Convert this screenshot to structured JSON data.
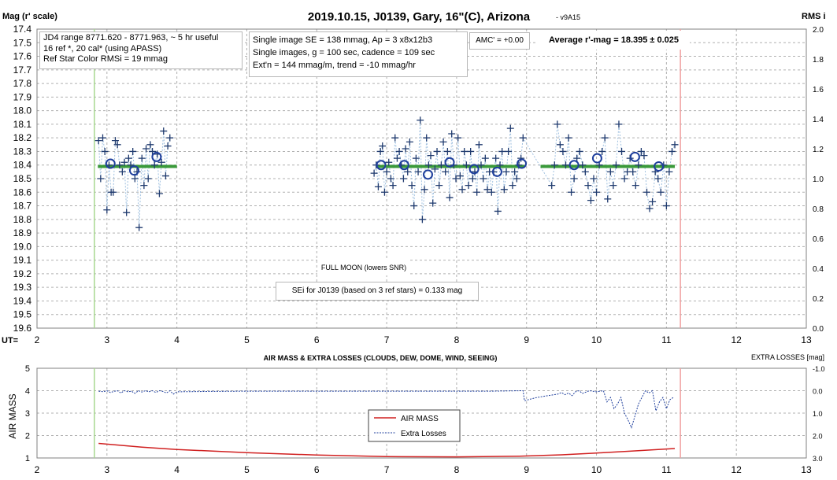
{
  "chart_data": [
    {
      "type": "scatter",
      "title": "2019.10.15, J0139, Gary, 16\"(C), Arizona",
      "version": "- v9A15",
      "ylabel_left": "Mag (r' scale)",
      "ylabel_right": "RMS i",
      "xlabel": "UT=",
      "xlim": [
        2,
        13
      ],
      "ylim_left": [
        17.4,
        19.6
      ],
      "ylim_right": [
        0.0,
        2.0
      ],
      "y_inverted": true,
      "grid": true,
      "x_ticks": [
        "2",
        "3",
        "4",
        "5",
        "6",
        "7",
        "8",
        "9",
        "10",
        "11",
        "12",
        "13"
      ],
      "y_ticks_left": [
        "17.4",
        "17.5",
        "17.6",
        "17.7",
        "17.8",
        "17.9",
        "18.0",
        "18.1",
        "18.2",
        "18.3",
        "18.4",
        "18.5",
        "18.6",
        "18.7",
        "18.8",
        "18.9",
        "19.0",
        "19.1",
        "19.2",
        "19.3",
        "19.4",
        "19.5",
        "19.6"
      ],
      "y_ticks_right": [
        "0.0",
        "0.2",
        "0.4",
        "0.6",
        "0.8",
        "1.0",
        "1.2",
        "1.4",
        "1.6",
        "1.8",
        "2.0"
      ],
      "vertical_markers": [
        {
          "x": 2.82,
          "color": "#a8d890"
        },
        {
          "x": 11.2,
          "color": "#f0a0a0"
        }
      ],
      "series": [
        {
          "marker": "plus",
          "color": "#1f3a6e",
          "x": [
            2.88,
            2.91,
            2.94,
            2.97,
            3.0,
            3.03,
            3.06,
            3.09,
            3.12,
            3.15,
            3.18,
            3.22,
            3.25,
            3.28,
            3.31,
            3.34,
            3.37,
            3.4,
            3.43,
            3.46,
            3.5,
            3.53,
            3.56,
            3.59,
            3.62,
            3.65,
            3.68,
            3.72,
            3.75,
            3.78,
            3.81,
            3.84,
            3.87,
            3.9,
            6.82,
            6.85,
            6.88,
            6.91,
            6.94,
            6.97,
            7.0,
            7.03,
            7.06,
            7.09,
            7.12,
            7.15,
            7.18,
            7.21,
            7.24,
            7.27,
            7.3,
            7.33,
            7.36,
            7.39,
            7.42,
            7.45,
            7.48,
            7.51,
            7.54,
            7.57,
            7.6,
            7.63,
            7.66,
            7.69,
            7.72,
            7.75,
            7.78,
            7.81,
            7.84,
            7.87,
            7.9,
            7.93,
            7.96,
            7.99,
            8.02,
            8.05,
            8.08,
            8.11,
            8.14,
            8.17,
            8.2,
            8.23,
            8.26,
            8.29,
            8.32,
            8.35,
            8.38,
            8.41,
            8.44,
            8.47,
            8.5,
            8.53,
            8.56,
            8.59,
            8.62,
            8.65,
            8.68,
            8.71,
            8.74,
            8.77,
            8.8,
            8.83,
            8.86,
            8.89,
            8.92,
            8.95,
            9.36,
            9.4,
            9.44,
            9.48,
            9.52,
            9.56,
            9.6,
            9.64,
            9.68,
            9.72,
            9.76,
            9.8,
            9.84,
            9.88,
            9.92,
            9.96,
            10.0,
            10.04,
            10.08,
            10.12,
            10.16,
            10.2,
            10.24,
            10.28,
            10.32,
            10.36,
            10.4,
            10.44,
            10.48,
            10.52,
            10.56,
            10.6,
            10.64,
            10.68,
            10.72,
            10.76,
            10.8,
            10.84,
            10.88,
            10.92,
            10.96,
            11.0,
            11.04,
            11.08,
            11.12
          ],
          "y": [
            18.22,
            18.5,
            18.2,
            18.3,
            18.73,
            18.4,
            18.6,
            18.6,
            18.22,
            18.25,
            18.4,
            18.45,
            18.38,
            18.75,
            18.35,
            18.4,
            18.3,
            18.5,
            18.45,
            18.86,
            18.35,
            18.55,
            18.28,
            18.5,
            18.25,
            18.3,
            18.4,
            18.32,
            18.61,
            18.38,
            18.15,
            18.48,
            18.26,
            18.2,
            18.46,
            18.4,
            18.56,
            18.3,
            18.26,
            18.6,
            18.45,
            18.38,
            18.5,
            18.55,
            18.2,
            18.35,
            18.3,
            18.4,
            18.5,
            18.28,
            18.45,
            18.23,
            18.55,
            18.7,
            18.35,
            18.45,
            18.07,
            18.8,
            18.58,
            18.2,
            18.4,
            18.33,
            18.68,
            18.43,
            18.3,
            18.55,
            18.4,
            18.23,
            18.45,
            18.3,
            18.64,
            18.17,
            18.4,
            18.5,
            18.2,
            18.48,
            18.58,
            18.3,
            18.4,
            18.55,
            18.3,
            18.5,
            18.45,
            18.6,
            18.25,
            18.4,
            18.5,
            18.35,
            18.58,
            18.45,
            18.6,
            18.45,
            18.35,
            18.74,
            18.4,
            18.3,
            18.58,
            18.45,
            18.3,
            18.13,
            18.55,
            18.45,
            18.5,
            18.4,
            18.35,
            18.2,
            18.55,
            18.4,
            18.1,
            18.25,
            18.3,
            18.4,
            18.2,
            18.6,
            18.5,
            18.35,
            18.3,
            18.4,
            18.45,
            18.55,
            18.66,
            18.5,
            18.6,
            18.4,
            18.3,
            18.2,
            18.65,
            18.45,
            18.55,
            18.4,
            18.1,
            18.3,
            18.5,
            18.45,
            18.35,
            18.45,
            18.55,
            18.4,
            18.3,
            18.33,
            18.6,
            18.72,
            18.67,
            18.45,
            18.5,
            18.6,
            18.4,
            18.7,
            18.45,
            18.3,
            18.25
          ]
        },
        {
          "marker": "circle",
          "color": "#1f3f9c",
          "x": [
            3.05,
            3.39,
            3.71,
            6.92,
            7.25,
            7.59,
            7.9,
            8.25,
            8.58,
            8.93,
            9.68,
            10.01,
            10.55,
            10.89
          ],
          "y": [
            18.39,
            18.44,
            18.34,
            18.4,
            18.4,
            18.47,
            18.38,
            18.43,
            18.45,
            18.39,
            18.4,
            18.35,
            18.34,
            18.41
          ]
        },
        {
          "marker": "line",
          "color": "#3a9a3a",
          "segments": [
            [
              2.87,
              4.0,
              18.41
            ],
            [
              6.85,
              8.97,
              18.41
            ],
            [
              9.2,
              11.12,
              18.41
            ]
          ]
        }
      ]
    },
    {
      "type": "line",
      "title": "AIR MASS & EXTRA LOSSES (CLOUDS, DEW, DOME, WIND, SEEING)",
      "ylabel_left": "AIR MASS",
      "ylabel_right": "EXTRA LOSSES [mag]",
      "xlim": [
        2,
        13
      ],
      "ylim_left": [
        1,
        5
      ],
      "ylim_right": [
        -1.0,
        3.0
      ],
      "y_right_inverted": true,
      "x_ticks": [
        "2",
        "3",
        "4",
        "5",
        "6",
        "7",
        "8",
        "9",
        "10",
        "11",
        "12",
        "13"
      ],
      "y_ticks_left": [
        "1",
        "2",
        "3",
        "4",
        "5"
      ],
      "y_ticks_right": [
        "-1.0",
        "0.0",
        "1.0",
        "2.0",
        "3.0"
      ],
      "legend": [
        "AIR MASS",
        "Extra Losses"
      ],
      "series": [
        {
          "name": "AIR MASS",
          "color": "#d02020",
          "x": [
            2.88,
            3.5,
            4.0,
            5.0,
            6.0,
            7.0,
            8.0,
            8.9,
            9.5,
            10.0,
            10.5,
            11.12
          ],
          "y": [
            1.65,
            1.48,
            1.38,
            1.24,
            1.13,
            1.06,
            1.05,
            1.08,
            1.14,
            1.22,
            1.31,
            1.42
          ]
        },
        {
          "name": "Extra Losses",
          "color": "#1f3f9c",
          "x": [
            2.88,
            2.95,
            3.0,
            3.05,
            3.1,
            3.15,
            3.2,
            3.25,
            3.3,
            3.35,
            3.4,
            3.45,
            3.5,
            3.55,
            3.6,
            3.65,
            3.7,
            3.75,
            3.8,
            3.85,
            3.9,
            3.95,
            4.0,
            4.5,
            5.0,
            5.5,
            6.0,
            6.5,
            7.0,
            7.5,
            8.0,
            8.5,
            8.95,
            8.97,
            9.05,
            9.15,
            9.25,
            9.35,
            9.45,
            9.5,
            9.55,
            9.6,
            9.65,
            9.7,
            9.75,
            9.8,
            9.9,
            10.0,
            10.1,
            10.15,
            10.2,
            10.25,
            10.3,
            10.35,
            10.4,
            10.45,
            10.5,
            10.6,
            10.7,
            10.75,
            10.8,
            10.85,
            10.9,
            10.95,
            11.0,
            11.05,
            11.1
          ],
          "y": [
            0.02,
            0.05,
            0.0,
            0.08,
            0.03,
            0.0,
            0.1,
            0.0,
            0.05,
            0.02,
            0.12,
            0.0,
            0.06,
            0.0,
            0.05,
            0.0,
            0.08,
            0.0,
            0.03,
            0.1,
            0.0,
            0.15,
            0.05,
            0.03,
            0.02,
            0.02,
            0.02,
            0.02,
            0.02,
            0.02,
            0.02,
            0.02,
            0.0,
            0.45,
            0.38,
            0.3,
            0.25,
            0.2,
            0.15,
            0.08,
            0.18,
            0.1,
            0.22,
            0.05,
            0.0,
            0.12,
            0.0,
            0.05,
            0.0,
            0.5,
            0.3,
            0.8,
            0.6,
            0.3,
            1.0,
            1.3,
            1.65,
            0.6,
            0.0,
            0.1,
            0.0,
            0.9,
            0.5,
            0.3,
            0.8,
            0.4,
            0.3
          ]
        }
      ]
    }
  ],
  "annotations": {
    "box1": [
      "JD4 range 8771.620 - 8771.963, ~ 5 hr useful",
      "16 ref *, 20 cal* (using APASS)",
      "Ref Star Color RMSi = 19 mmag"
    ],
    "box2": [
      "Single image SE = 138 mmag, Ap = 3 x8x12b3",
      "Single images, g = 100 sec, cadence = 109 sec",
      "Ext'n = 144 mmag/m, trend = -10 mmag/hr"
    ],
    "amc": "AMC' = +0.00",
    "average": "Average r'-mag =  18.395 ± 0.025",
    "full_moon": "FULL MOON (lowers SNR)",
    "sei": "SEi for J0139 (based on 3 ref stars) = 0.133 mag"
  }
}
